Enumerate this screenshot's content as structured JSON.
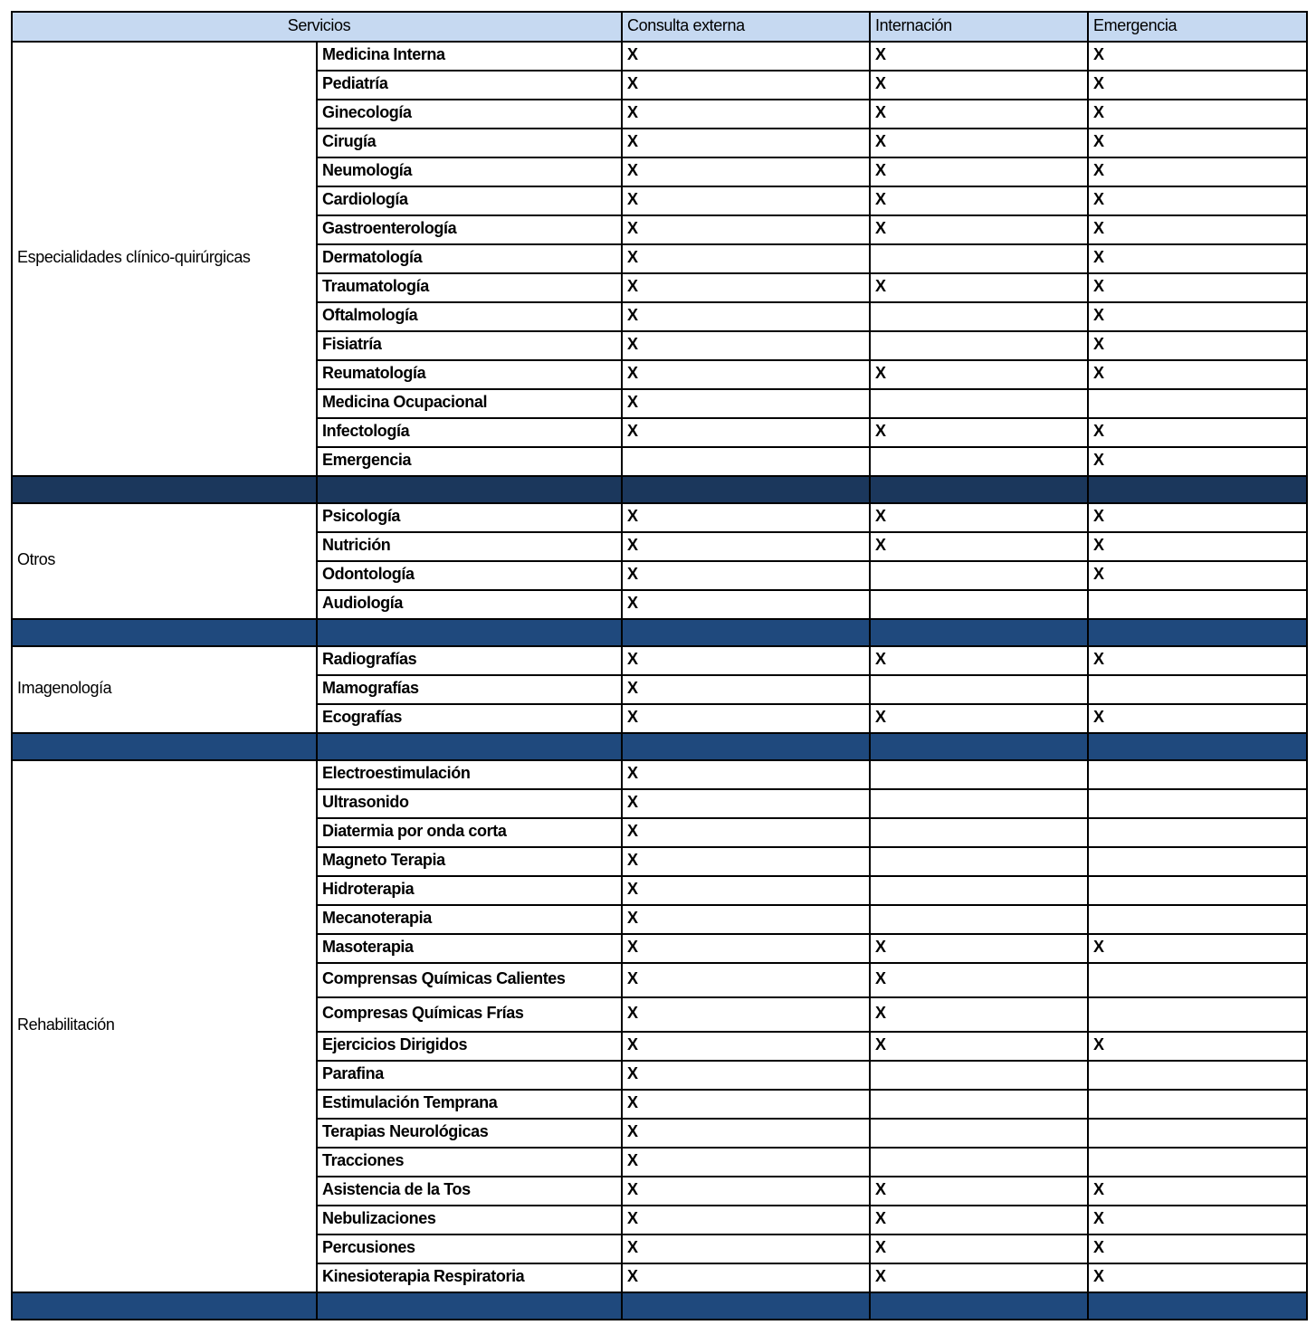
{
  "header": {
    "servicios": "Servicios",
    "consulta_externa": "Consulta externa",
    "internacion": "Internación",
    "emergencia": "Emergencia"
  },
  "colors": {
    "header_bg": "#c6d9f1",
    "separator_first": "#1b375c",
    "separator": "#1f497d"
  },
  "mark": "X",
  "groups": [
    {
      "label": "Especialidades clínico-quirúrgicas",
      "rows": [
        {
          "name": "Medicina Interna",
          "c": "X",
          "i": "X",
          "e": "X"
        },
        {
          "name": "Pediatría",
          "c": "X",
          "i": "X",
          "e": "X"
        },
        {
          "name": "Ginecología",
          "c": "X",
          "i": "X",
          "e": "X"
        },
        {
          "name": "Cirugía",
          "c": "X",
          "i": "X",
          "e": "X"
        },
        {
          "name": "Neumología",
          "c": "X",
          "i": "X",
          "e": "X"
        },
        {
          "name": "Cardiología",
          "c": "X",
          "i": "X",
          "e": "X"
        },
        {
          "name": "Gastroenterología",
          "c": "X",
          "i": "X",
          "e": "X"
        },
        {
          "name": "Dermatología",
          "c": "X",
          "i": "",
          "e": "X"
        },
        {
          "name": "Traumatología",
          "c": "X",
          "i": "X",
          "e": "X"
        },
        {
          "name": "Oftalmología",
          "c": "X",
          "i": "",
          "e": "X"
        },
        {
          "name": "Fisiatría",
          "c": "X",
          "i": "",
          "e": "X"
        },
        {
          "name": "Reumatología",
          "c": "X",
          "i": "X",
          "e": "X"
        },
        {
          "name": "Medicina Ocupacional",
          "c": "X",
          "i": "",
          "e": ""
        },
        {
          "name": "Infectología",
          "c": "X",
          "i": "X",
          "e": "X"
        },
        {
          "name": "Emergencia",
          "c": "",
          "i": "",
          "e": "X"
        }
      ]
    },
    {
      "label": "Otros",
      "rows": [
        {
          "name": "Psicología",
          "c": "X",
          "i": "X",
          "e": "X"
        },
        {
          "name": "Nutrición",
          "c": "X",
          "i": "X",
          "e": "X"
        },
        {
          "name": "Odontología",
          "c": "X",
          "i": "",
          "e": "X"
        },
        {
          "name": "Audiología",
          "c": "X",
          "i": "",
          "e": ""
        }
      ]
    },
    {
      "label": "Imagenología",
      "rows": [
        {
          "name": "Radiografías",
          "c": "X",
          "i": "X",
          "e": "X"
        },
        {
          "name": "Mamografías",
          "c": "X",
          "i": "",
          "e": ""
        },
        {
          "name": "Ecografías",
          "c": "X",
          "i": "X",
          "e": "X"
        }
      ]
    },
    {
      "label": "Rehabilitación",
      "rows": [
        {
          "name": "Electroestimulación",
          "c": "X",
          "i": "",
          "e": ""
        },
        {
          "name": "Ultrasonido",
          "c": "X",
          "i": "",
          "e": ""
        },
        {
          "name": "Diatermia por onda corta",
          "c": "X",
          "i": "",
          "e": ""
        },
        {
          "name": "Magneto Terapia",
          "c": "X",
          "i": "",
          "e": ""
        },
        {
          "name": "Hidroterapia",
          "c": "X",
          "i": "",
          "e": ""
        },
        {
          "name": "Mecanoterapia",
          "c": "X",
          "i": "",
          "e": ""
        },
        {
          "name": "Masoterapia",
          "c": "X",
          "i": "X",
          "e": "X"
        },
        {
          "name": "Comprensas Químicas Calientes",
          "c": "X",
          "i": "X",
          "e": ""
        },
        {
          "name": "Compresas Químicas Frías",
          "c": "X",
          "i": "X",
          "e": ""
        },
        {
          "name": "Ejercicios Dirigidos",
          "c": "X",
          "i": "X",
          "e": "X"
        },
        {
          "name": "Parafina",
          "c": "X",
          "i": "",
          "e": ""
        },
        {
          "name": "Estimulación Temprana",
          "c": "X",
          "i": "",
          "e": ""
        },
        {
          "name": "Terapias Neurológicas",
          "c": "X",
          "i": "",
          "e": ""
        },
        {
          "name": "Tracciones",
          "c": "X",
          "i": "",
          "e": ""
        },
        {
          "name": "Asistencia de la Tos",
          "c": "X",
          "i": "X",
          "e": "X"
        },
        {
          "name": "Nebulizaciones",
          "c": "X",
          "i": "X",
          "e": "X"
        },
        {
          "name": "Percusiones",
          "c": "X",
          "i": "X",
          "e": "X"
        },
        {
          "name": "Kinesioterapia Respiratoria",
          "c": "X",
          "i": "X",
          "e": "X"
        }
      ]
    }
  ]
}
